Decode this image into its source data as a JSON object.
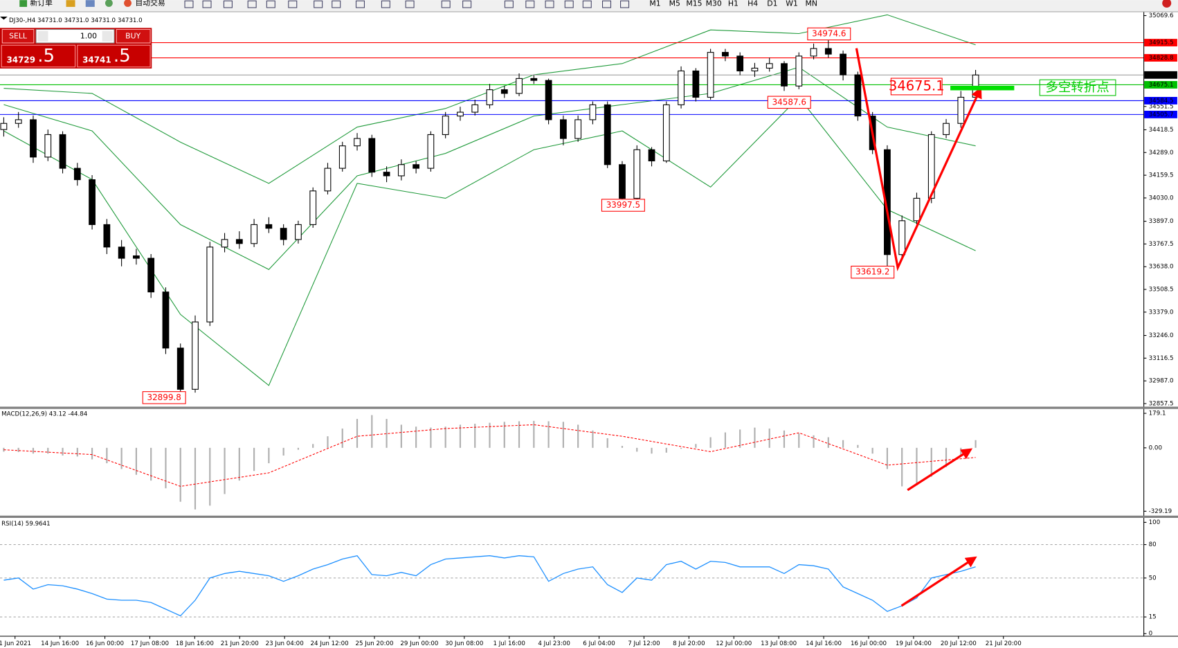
{
  "toolbar": {
    "new_order": "新订单",
    "auto_trading": "自动交易",
    "timeframes": [
      "M1",
      "M5",
      "M15",
      "M30",
      "H1",
      "H4",
      "D1",
      "W1",
      "MN"
    ]
  },
  "trade_panel": {
    "sell": "SELL",
    "buy": "BUY",
    "volume": "1.00",
    "sell_price": "34729",
    "sell_fraction": ".5",
    "buy_price": "34741",
    "buy_fraction": ".5"
  },
  "chart_data": {
    "type": "candlestick",
    "header": "DJ30-,H4  34731.0 34731.0 34731.0 34731.0",
    "open": [
      34420,
      34455,
      34476,
      34263,
      34391,
      34199,
      34134,
      33878,
      33750,
      33700,
      33686,
      33494,
      33174,
      32939,
      33323,
      33750,
      33793,
      33770,
      33878,
      33857,
      33793,
      33878,
      34070,
      34199,
      34327,
      34369,
      34177,
      34156,
      34220,
      34199,
      34391,
      34497,
      34519,
      34561,
      34647,
      34626,
      34711,
      34700,
      34476,
      34369,
      34476,
      34561,
      34220,
      34028,
      34305,
      34241,
      34561,
      34754,
      34604,
      34860,
      34839,
      34754,
      34770,
      34796,
      34668,
      34839,
      34882,
      34850,
      34732,
      34497,
      34305,
      33707,
      33900,
      34028,
      34391,
      34455,
      34604
    ],
    "high": [
      34490,
      34520,
      34500,
      34420,
      34410,
      34230,
      34160,
      33910,
      33790,
      33740,
      33710,
      33520,
      33200,
      33360,
      33780,
      33830,
      33840,
      33910,
      33920,
      33880,
      33900,
      34090,
      34230,
      34350,
      34400,
      34390,
      34210,
      34250,
      34240,
      34410,
      34520,
      34550,
      34590,
      34680,
      34670,
      34740,
      34730,
      34710,
      34500,
      34500,
      34580,
      34580,
      34240,
      34330,
      34320,
      34580,
      34780,
      34770,
      34880,
      34880,
      34860,
      34800,
      34830,
      34810,
      34860,
      34910,
      34974.6,
      34870,
      34750,
      34520,
      34330,
      33930,
      34060,
      34410,
      34480,
      34640,
      34760
    ],
    "low": [
      34380,
      34430,
      34230,
      34240,
      34170,
      34100,
      33850,
      33710,
      33640,
      33650,
      33460,
      33140,
      32899.8,
      32920,
      33300,
      33720,
      33740,
      33750,
      33830,
      33760,
      33770,
      33860,
      34050,
      34180,
      34300,
      34150,
      34120,
      34130,
      34170,
      34180,
      34370,
      34470,
      34500,
      34540,
      34600,
      34610,
      34680,
      34450,
      34330,
      34350,
      34450,
      34200,
      33997.5,
      34010,
      34210,
      34230,
      34540,
      34580,
      34590,
      34810,
      34730,
      34720,
      34750,
      34640,
      34650,
      34820,
      34830,
      34700,
      34470,
      34280,
      33619.2,
      33680,
      33880,
      34000,
      34370,
      34430,
      34580
    ],
    "close": [
      34455,
      34476,
      34263,
      34391,
      34199,
      34134,
      33878,
      33750,
      33686,
      33686,
      33494,
      33174,
      32939,
      33323,
      33750,
      33793,
      33770,
      33878,
      33857,
      33793,
      33878,
      34070,
      34199,
      34327,
      34369,
      34177,
      34156,
      34220,
      34199,
      34391,
      34497,
      34519,
      34561,
      34647,
      34626,
      34711,
      34700,
      34476,
      34369,
      34476,
      34561,
      34220,
      34028,
      34305,
      34241,
      34561,
      34754,
      34604,
      34860,
      34839,
      34754,
      34770,
      34796,
      34668,
      34839,
      34882,
      34850,
      34732,
      34497,
      34305,
      33707,
      33900,
      34028,
      34391,
      34455,
      34604,
      34731
    ],
    "x_labels": [
      "1 Jun 2021",
      "14 Jun 16:00",
      "16 Jun 00:00",
      "17 Jun 08:00",
      "18 Jun 16:00",
      "21 Jun 20:00",
      "23 Jun 04:00",
      "24 Jun 12:00",
      "25 Jun 20:00",
      "29 Jun 00:00",
      "30 Jun 08:00",
      "1 Jul 16:00",
      "4 Jul 23:00",
      "6 Jul 04:00",
      "7 Jul 12:00",
      "8 Jul 20:00",
      "12 Jul 00:00",
      "13 Jul 08:00",
      "14 Jul 16:00",
      "16 Jul 00:00",
      "19 Jul 04:00",
      "20 Jul 12:00",
      "21 Jul 20:00"
    ],
    "ylim": [
      32840,
      35085
    ],
    "yticks": [
      35069.6,
      34551.5,
      34418.5,
      {
        "value": 34289,
        "label": "34289.0"
      },
      34159.5,
      {
        "value": 34030,
        "label": "34030.0"
      },
      {
        "value": 33897,
        "label": "33897.0"
      },
      33767.5,
      {
        "value": 33638,
        "label": "33638.0"
      },
      33508.5,
      {
        "value": 33379,
        "label": "33379.0"
      },
      {
        "value": 33246,
        "label": "33246.0"
      },
      33116.5,
      {
        "value": 32987,
        "label": "32987.0"
      },
      32857.5
    ],
    "levels": [
      {
        "value": 34915.5,
        "color": "#ff0000"
      },
      {
        "value": 34828.8,
        "color": "#ff0000"
      },
      {
        "value": 34731,
        "label": "34731.0",
        "color": "#000000"
      },
      {
        "value": 34675.1,
        "color": "#00c000"
      },
      {
        "value": 34584.5,
        "color": "#0000ff"
      },
      {
        "value": 34505.7,
        "color": "#0000ff"
      }
    ],
    "bollinger": {
      "color": "#1f9a3a",
      "x": [
        0,
        6,
        12,
        18,
        24,
        30,
        36,
        42,
        48,
        54,
        60,
        66
      ],
      "upper": [
        34655,
        34626,
        34348,
        34113,
        34434,
        34540,
        34732,
        34796,
        34988,
        34967,
        35074,
        34903
      ],
      "middle": [
        34562,
        34412,
        33878,
        33622,
        34156,
        34284,
        34497,
        34562,
        34626,
        34775,
        34434,
        34327
      ],
      "lower": [
        34412,
        34135,
        33366,
        32961,
        34113,
        34028,
        34305,
        34412,
        34092,
        34604,
        33964,
        33729
      ]
    },
    "annotations": [
      {
        "value": 34974.6
      },
      {
        "value": 34587.6
      },
      {
        "value": 33997.5
      },
      {
        "value": 33619.2
      },
      {
        "value": 32899.8
      },
      {
        "value": 34675.1
      }
    ],
    "turning_point_label": "多空转折点",
    "macd": {
      "title": "MACD(12,26,9) 43.12 -44.84",
      "histogram": [
        -20,
        -22,
        -30,
        -30,
        -40,
        -45,
        -60,
        -80,
        -110,
        -140,
        -170,
        -210,
        -280,
        -320,
        -300,
        -240,
        -170,
        -120,
        -80,
        -40,
        -10,
        20,
        60,
        100,
        150,
        170,
        150,
        120,
        110,
        105,
        110,
        120,
        125,
        130,
        135,
        138,
        140,
        138,
        135,
        120,
        90,
        50,
        10,
        -20,
        -30,
        -25,
        -5,
        20,
        55,
        80,
        95,
        105,
        100,
        90,
        75,
        65,
        55,
        40,
        15,
        -30,
        -110,
        -200,
        -195,
        -150,
        -100,
        -40,
        40
      ],
      "signal_x": [
        0,
        6,
        12,
        18,
        24,
        30,
        36,
        42,
        48,
        54,
        60,
        66
      ],
      "signal": [
        -10,
        -35,
        -200,
        -130,
        60,
        100,
        120,
        60,
        -20,
        78,
        -90,
        -50
      ],
      "ylim": [
        -352,
        202
      ],
      "yticks": [
        179.1,
        {
          "value": 0,
          "label": "0.00"
        },
        -329.19
      ]
    },
    "rsi": {
      "title": "RSI(14) 59.9641",
      "values": [
        48,
        50,
        40,
        44,
        43,
        40,
        36,
        31,
        30,
        30,
        28,
        22,
        16,
        30,
        50,
        54,
        56,
        54,
        52,
        47,
        52,
        58,
        62,
        67,
        70,
        53,
        52,
        55,
        52,
        62,
        67,
        68,
        69,
        70,
        68,
        70,
        69,
        47,
        54,
        58,
        60,
        44,
        37,
        50,
        48,
        62,
        65,
        58,
        65,
        64,
        60,
        60,
        60,
        54,
        62,
        61,
        58,
        42,
        36,
        30,
        20,
        25,
        32,
        50,
        53,
        56,
        60
      ],
      "color": "#1e90ff",
      "ylim": [
        -2,
        104
      ],
      "yticks": [
        100,
        80,
        50,
        15,
        0
      ],
      "levels": [
        80,
        50,
        15
      ]
    }
  }
}
